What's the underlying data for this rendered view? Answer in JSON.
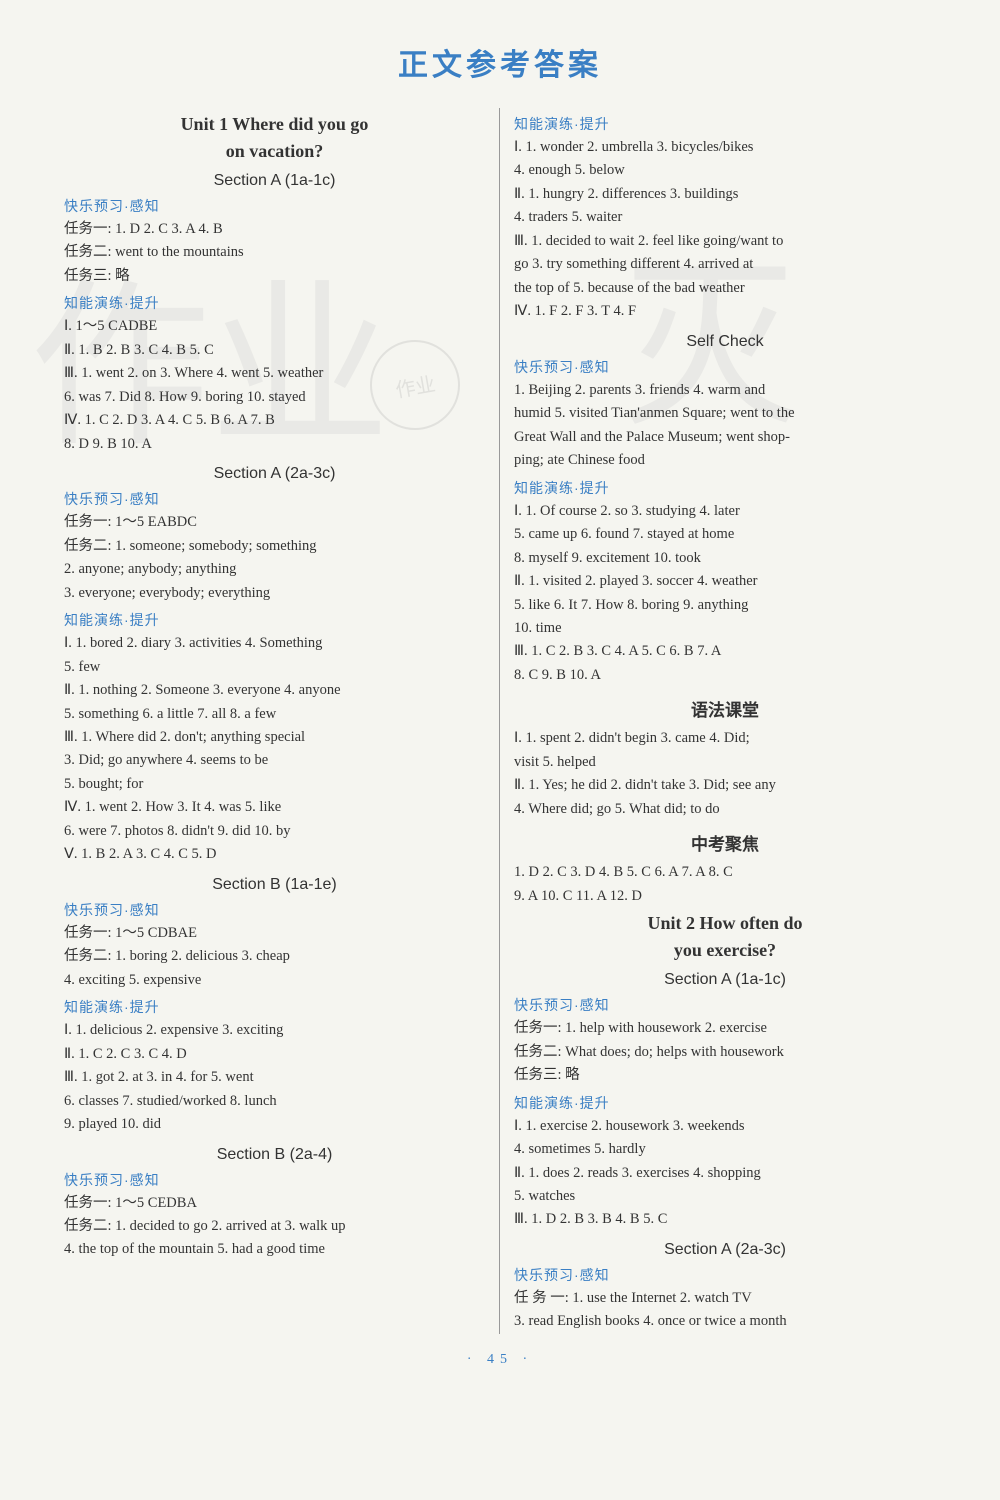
{
  "page_title": "正文参考答案",
  "page_number": "· 45 ·",
  "watermarks": {
    "wm1": "作业",
    "wm2": "灭",
    "stamp": "作业"
  },
  "left": {
    "unit1_title": "Unit 1   Where did you go",
    "unit1_title2": "on vacation?",
    "secA1": "Section A (1a-1c)",
    "lbl_happy": "快乐预习·感知",
    "lbl_skill": "知能演练·提升",
    "a1_t1": "任务一: 1. D   2. C   3. A   4. B",
    "a1_t2": "任务二: went to the mountains",
    "a1_t3": "任务三: 略",
    "a1_s1": "Ⅰ. 1～5 CADBE",
    "a1_s2": "Ⅱ. 1. B   2. B   3. C   4. B   5. C",
    "a1_s3": "Ⅲ. 1. went   2. on   3. Where   4. went   5. weather",
    "a1_s3b": "   6. was   7. Did   8. How   9. boring   10. stayed",
    "a1_s4": "Ⅳ. 1. C   2. D   3. A   4. C   5. B   6. A   7. B",
    "a1_s4b": "   8. D   9. B   10. A",
    "secA2": "Section A (2a-3c)",
    "a2_t1": "任务一: 1～5 EABDC",
    "a2_t2a": "任务二: 1. someone; somebody; something",
    "a2_t2b": "2. anyone; anybody; anything",
    "a2_t2c": "3. everyone; everybody; everything",
    "a2_s1": "Ⅰ. 1. bored   2. diary   3. activities   4. Something",
    "a2_s1b": "   5. few",
    "a2_s2": "Ⅱ. 1. nothing   2. Someone   3. everyone   4. anyone",
    "a2_s2b": "   5. something   6. a little   7. all   8. a few",
    "a2_s3": "Ⅲ. 1. Where did   2. don't; anything special",
    "a2_s3b": "   3. Did; go anywhere   4. seems to be",
    "a2_s3c": "   5. bought; for",
    "a2_s4": "Ⅳ. 1. went    2. How    3. It    4. was    5. like",
    "a2_s4b": "   6. were   7. photos   8. didn't   9. did   10. by",
    "a2_s5": "Ⅴ. 1. B   2. A   3. C   4. C   5. D",
    "secB1": "Section B (1a-1e)",
    "b1_t1": "任务一: 1～5 CDBAE",
    "b1_t2": "任务二: 1. boring   2. delicious   3. cheap",
    "b1_t2b": "4. exciting   5. expensive",
    "b1_s1": "Ⅰ. 1. delicious   2. expensive   3. exciting",
    "b1_s2": "Ⅱ. 1. C   2. C   3. C   4. D",
    "b1_s3": "Ⅲ. 1. got   2. at   3. in   4. for   5. went",
    "b1_s3b": "   6. classes   7. studied/worked   8. lunch",
    "b1_s3c": "   9. played   10. did",
    "secB2": "Section B (2a-4)",
    "b2_t1": "任务一: 1～5 CEDBA",
    "b2_t2": "任务二: 1. decided to go   2. arrived at   3. walk up",
    "b2_t2b": "4. the top of the mountain   5. had a good time"
  },
  "right": {
    "r1_s1": "Ⅰ. 1. wonder   2. umbrella   3. bicycles/bikes",
    "r1_s1b": "   4. enough   5. below",
    "r1_s2": "Ⅱ. 1. hungry   2. differences   3. buildings",
    "r1_s2b": "   4. traders   5. waiter",
    "r1_s3": "Ⅲ. 1. decided to wait   2. feel like going/want to",
    "r1_s3b": "   go   3. try something different   4. arrived at",
    "r1_s3c": "   the top of   5. because of the bad weather",
    "r1_s4": "Ⅳ. 1. F   2. F   3. T   4. F",
    "self_check": "Self Check",
    "sc_h1": "1. Beijing   2. parents   3. friends   4. warm and",
    "sc_h2": "humid   5. visited Tian'anmen Square; went to the",
    "sc_h3": "Great Wall and the Palace Museum; went shop-",
    "sc_h4": "ping; ate Chinese food",
    "sc_s1": "Ⅰ. 1. Of course   2. so   3. studying   4. later",
    "sc_s1b": "   5. came up   6. found   7. stayed at home",
    "sc_s1c": "   8. myself   9. excitement   10. took",
    "sc_s2": "Ⅱ. 1. visited   2. played   3. soccer   4. weather",
    "sc_s2b": "   5. like   6. It   7. How   8. boring   9. anything",
    "sc_s2c": "   10. time",
    "sc_s3": "Ⅲ. 1. C   2. B   3. C   4. A   5. C   6. B   7. A",
    "sc_s3b": "   8. C   9. B   10. A",
    "grammar_title": "语法课堂",
    "g1": "Ⅰ. 1. spent    2. didn't begin    3. came    4. Did;",
    "g1b": "   visit   5. helped",
    "g2": "Ⅱ. 1. Yes; he did   2. didn't take   3. Did; see any",
    "g2b": "   4. Where did; go   5. What did; to do",
    "exam_title": "中考聚焦",
    "e1": "1. D   2. C   3. D   4. B   5. C   6. A   7. A   8. C",
    "e2": "9. A   10. C   11. A   12. D",
    "unit2_title": "Unit 2   How often do",
    "unit2_title2": "you exercise?",
    "u2_secA1": "Section A (1a-1c)",
    "u2_t1": "任务一: 1. help with housework   2. exercise",
    "u2_t2": "任务二: What does; do; helps with housework",
    "u2_t3": "任务三: 略",
    "u2_s1": "Ⅰ. 1. exercise   2. housework   3. weekends",
    "u2_s1b": "   4. sometimes   5. hardly",
    "u2_s2": "Ⅱ. 1. does   2. reads   3. exercises   4. shopping",
    "u2_s2b": "   5. watches",
    "u2_s3": "Ⅲ. 1. D   2. B   3. B   4. B   5. C",
    "u2_secA2": "Section A (2a-3c)",
    "u2a2_t1": "任 务 一: 1. use the Internet    2. watch TV",
    "u2a2_t1b": "3. read English books   4. once or twice a month"
  }
}
